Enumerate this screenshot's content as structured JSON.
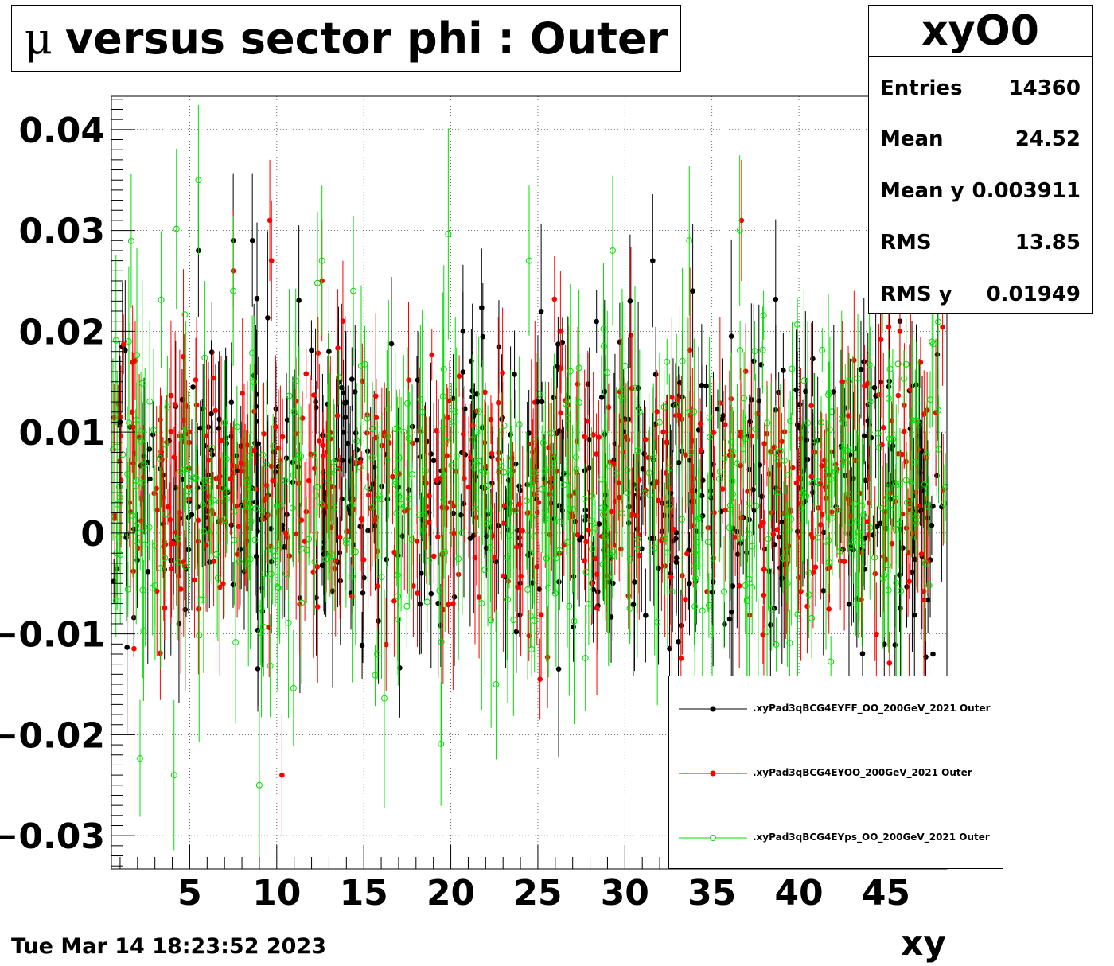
{
  "title": {
    "mu_symbol": "μ",
    "text": "versus sector phi : Outer"
  },
  "stats": {
    "name": "xyO0",
    "rows": [
      {
        "label": "Entries",
        "value": "14360"
      },
      {
        "label": "Mean",
        "value": "24.52"
      },
      {
        "label": "Mean y",
        "value": "0.003911"
      },
      {
        "label": "RMS",
        "value": "13.85"
      },
      {
        "label": "RMS y",
        "value": "0.01949"
      }
    ]
  },
  "footer": {
    "date": "Tue Mar 14 18:23:52 2023"
  },
  "chart_data": {
    "type": "scatter",
    "title": "μ versus sector phi : Outer",
    "xlabel": "xy",
    "ylabel": "",
    "xlim": [
      0.5,
      48.5
    ],
    "ylim": [
      -0.0333,
      0.0433
    ],
    "grid": true,
    "legend_position": "bottom-right",
    "x_ticks": [
      5,
      10,
      15,
      20,
      25,
      30,
      35,
      40,
      45
    ],
    "y_ticks": [
      -0.03,
      -0.02,
      -0.01,
      0,
      0.01,
      0.02,
      0.03,
      0.04
    ],
    "x_tick_labels": [
      "5",
      "10",
      "15",
      "20",
      "25",
      "30",
      "35",
      "40",
      "45"
    ],
    "y_tick_labels": [
      "−0.03",
      "−0.02",
      "−0.01",
      "0",
      "0.01",
      "0.02",
      "0.03",
      "0.04"
    ],
    "series": [
      {
        "name": ".xyPad3qBCG4EYFF_OO_200GeV_2021 Outer",
        "color": "#000000",
        "marker": "filled-circle",
        "approx_mean": 0.004,
        "approx_sigma": 0.0072,
        "approx_error": 0.0055,
        "x": [
          1.0,
          5.5,
          7.5,
          8.6,
          13.0,
          14.5,
          20.7,
          25.0,
          30.3,
          31.6,
          33.9,
          42.0,
          45.8,
          47.7
        ],
        "y": [
          0.011,
          0.028,
          0.029,
          0.029,
          0.018,
          0.014,
          0.02,
          0.013,
          0.023,
          0.027,
          0.024,
          0.014,
          0.021,
          -0.012
        ]
      },
      {
        "name": ".xyPad3qBCG4EYOO_200GeV_2021 Outer",
        "color": "#ff0000",
        "marker": "filled-circle",
        "approx_mean": 0.0042,
        "approx_sigma": 0.0068,
        "approx_error": 0.005,
        "x": [
          1.7,
          7.5,
          9.6,
          9.7,
          10.3,
          12.6,
          13.8,
          26.3,
          32.7,
          36.7,
          42.5,
          45.8
        ],
        "y": [
          0.012,
          0.026,
          0.031,
          0.027,
          -0.024,
          0.025,
          0.021,
          0.02,
          -0.015,
          0.031,
          0.015,
          0.02
        ]
      },
      {
        "name": ".xyPad3qBCG4EYps_OO_200GeV_2021 Outer",
        "color": "#00e000",
        "marker": "open-circle",
        "approx_mean": 0.0036,
        "approx_sigma": 0.0078,
        "approx_error": 0.0062,
        "x": [
          1.5,
          4.1,
          5.5,
          7.5,
          9.0,
          12.6,
          14.4,
          22.6,
          24.5,
          29.3,
          33.7,
          36.6,
          44.1
        ],
        "y": [
          0.019,
          -0.024,
          0.035,
          0.024,
          -0.025,
          0.027,
          0.024,
          -0.015,
          0.027,
          0.028,
          0.029,
          0.03,
          0.013
        ]
      }
    ]
  }
}
